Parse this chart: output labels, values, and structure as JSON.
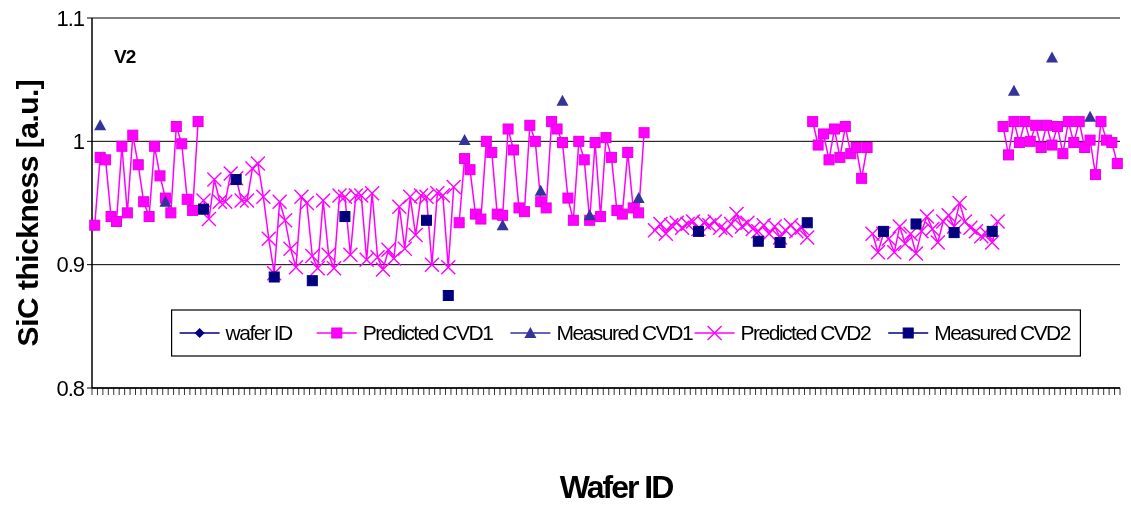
{
  "chart_data": {
    "type": "line",
    "xlabel": "Wafer ID",
    "ylabel": "SiC thickness [a.u.]",
    "annotations": [
      "V2"
    ],
    "categories": [
      null,
      null,
      null,
      null,
      null,
      null,
      null,
      null,
      null,
      null,
      null,
      null,
      null,
      null,
      null,
      null,
      null,
      null,
      null,
      null,
      null,
      null,
      null,
      null,
      null,
      null,
      null,
      null,
      null,
      null,
      null,
      null,
      null,
      null,
      null,
      null,
      null,
      null,
      null,
      null,
      null,
      null,
      null,
      null,
      null,
      null,
      null,
      null,
      null,
      null,
      null,
      null,
      null,
      null,
      null,
      null,
      null,
      null,
      null,
      null,
      null,
      null,
      null,
      null,
      null,
      null,
      null,
      null,
      null,
      null,
      null,
      null,
      null,
      null,
      null,
      null,
      null,
      null,
      null,
      null,
      null,
      null,
      null,
      null,
      null,
      null,
      null,
      null,
      null,
      null,
      null,
      null,
      null,
      null,
      null,
      null,
      null,
      null,
      null,
      null,
      null,
      null,
      null,
      null,
      null,
      null,
      null,
      null,
      null,
      null,
      null,
      null,
      null,
      null,
      null,
      null,
      null,
      null,
      null,
      null,
      null,
      null,
      null,
      null,
      null,
      null,
      null,
      null,
      null,
      null,
      null,
      null,
      null,
      null,
      null,
      null,
      null,
      null,
      null,
      null,
      null,
      null,
      null,
      null,
      null,
      null,
      null,
      null,
      null,
      null,
      null,
      null,
      null,
      null,
      null,
      null,
      null,
      null,
      null,
      null,
      null,
      null,
      null,
      null,
      null,
      null,
      null,
      null,
      null,
      null,
      null,
      null,
      null,
      null,
      null,
      null,
      null,
      null,
      null,
      null,
      null,
      null,
      null,
      null,
      null,
      null,
      null,
      null,
      null
    ],
    "ylim": [
      0.8,
      1.1
    ],
    "yticks": [
      0.8,
      0.9,
      1,
      1.1
    ],
    "grid": "y",
    "legend": "bottom",
    "series": [
      {
        "name": "wafer ID",
        "color": "#000080",
        "marker": "diamond",
        "line_style": "solid",
        "values": [
          null,
          null,
          null,
          null,
          null,
          null,
          null,
          null,
          null,
          null,
          null,
          null,
          null,
          null,
          null,
          null,
          null,
          null,
          null,
          null,
          null,
          null,
          null,
          null,
          null,
          null,
          null,
          null,
          null,
          null,
          null,
          null,
          null,
          null,
          null,
          null,
          null,
          null,
          null,
          null,
          null,
          null,
          null,
          null,
          null,
          null,
          null,
          null,
          null,
          null,
          null,
          null,
          null,
          null,
          null,
          null,
          null,
          null,
          null,
          null,
          null,
          null,
          null,
          null,
          null,
          null,
          null,
          null,
          null,
          null,
          null,
          null,
          null,
          null,
          null,
          null,
          null,
          null,
          null,
          null,
          null,
          null,
          null,
          null,
          null,
          null,
          null,
          null,
          null,
          null,
          null,
          null,
          null,
          null,
          null,
          null,
          null,
          null,
          null,
          null,
          null,
          null,
          null,
          null,
          null,
          null,
          null,
          null,
          null,
          null,
          null,
          null,
          null,
          null,
          null,
          null,
          null,
          null,
          null,
          null,
          null,
          null,
          null,
          null,
          null,
          null,
          null,
          null,
          null,
          null,
          null,
          null,
          null,
          null,
          null,
          null,
          null,
          null,
          null,
          null,
          null,
          null,
          null,
          null,
          null,
          null,
          null,
          null,
          null,
          null,
          null,
          null,
          null,
          null,
          null,
          null,
          null,
          null,
          null,
          null,
          null,
          null,
          null,
          null,
          null,
          null,
          null,
          null,
          null,
          null,
          null,
          null,
          null,
          null,
          null,
          null,
          null,
          null,
          null,
          null,
          null,
          null,
          null,
          null,
          null,
          null,
          null,
          null,
          null
        ]
      },
      {
        "name": "Predicted CVD1",
        "color": "#ff00ff",
        "marker": "square",
        "line_style": "solid",
        "values": [
          0.932,
          0.987,
          0.985,
          0.939,
          0.935,
          0.996,
          0.942,
          1.005,
          0.981,
          0.951,
          0.939,
          0.996,
          0.972,
          0.954,
          0.942,
          1.012,
          0.998,
          0.953,
          0.944,
          1.016,
          null,
          null,
          null,
          null,
          null,
          null,
          null,
          null,
          null,
          null,
          null,
          null,
          null,
          null,
          null,
          null,
          null,
          null,
          null,
          null,
          null,
          null,
          null,
          null,
          null,
          null,
          null,
          null,
          null,
          null,
          null,
          null,
          null,
          null,
          null,
          null,
          null,
          null,
          null,
          null,
          null,
          null,
          null,
          null,
          null,
          null,
          null,
          0.934,
          0.986,
          0.977,
          0.941,
          0.937,
          1.0,
          0.991,
          0.941,
          0.94,
          1.01,
          0.993,
          0.946,
          0.943,
          1.013,
          1.0,
          0.951,
          0.946,
          1.016,
          1.01,
          0.999,
          0.954,
          0.936,
          1.0,
          0.985,
          0.936,
          0.999,
          0.939,
          1.003,
          0.987,
          0.944,
          0.941,
          0.991,
          0.946,
          0.942,
          1.007,
          null,
          null,
          null,
          null,
          null,
          null,
          null,
          null,
          null,
          null,
          null,
          null,
          null,
          null,
          null,
          null,
          null,
          null,
          null,
          null,
          null,
          null,
          null,
          null,
          null,
          null,
          null,
          null,
          null,
          null,
          1.016,
          0.997,
          1.006,
          0.985,
          1.01,
          0.987,
          1.012,
          0.99,
          0.995,
          0.97,
          0.995,
          null,
          null,
          null,
          null,
          null,
          null,
          null,
          null,
          null,
          null,
          null,
          null,
          null,
          null,
          null,
          null,
          null,
          null,
          null,
          null,
          null,
          null,
          null,
          null,
          1.012,
          0.989,
          1.016,
          0.999,
          1.016,
          1.0,
          1.013,
          0.995,
          1.013,
          0.997,
          1.012,
          0.99,
          1.016,
          0.999,
          1.016,
          0.995,
          1.001,
          0.973,
          1.016,
          1.001,
          0.999,
          0.982
        ]
      },
      {
        "name": "Measured CVD1",
        "type": "scatter",
        "color": "#333399",
        "marker": "triangle",
        "values": [
          null,
          1.013,
          null,
          null,
          null,
          null,
          null,
          null,
          null,
          null,
          null,
          null,
          null,
          0.951,
          null,
          null,
          null,
          null,
          null,
          null,
          null,
          null,
          null,
          null,
          null,
          null,
          null,
          null,
          null,
          null,
          null,
          null,
          null,
          null,
          null,
          null,
          null,
          null,
          null,
          null,
          null,
          null,
          null,
          null,
          null,
          null,
          null,
          null,
          null,
          null,
          null,
          null,
          null,
          null,
          null,
          null,
          null,
          null,
          null,
          null,
          null,
          null,
          null,
          null,
          null,
          null,
          null,
          null,
          1.001,
          null,
          null,
          null,
          null,
          null,
          null,
          0.932,
          null,
          null,
          null,
          null,
          null,
          null,
          0.96,
          null,
          null,
          null,
          1.033,
          null,
          null,
          null,
          null,
          0.94,
          null,
          null,
          null,
          null,
          null,
          null,
          null,
          null,
          0.954,
          null,
          null,
          null,
          null,
          null,
          null,
          null,
          null,
          null,
          null,
          null,
          null,
          null,
          null,
          null,
          null,
          null,
          null,
          null,
          null,
          null,
          null,
          null,
          null,
          null,
          null,
          null,
          null,
          null,
          null,
          null,
          null,
          null,
          null,
          null,
          null,
          null,
          null,
          null,
          null,
          null,
          null,
          null,
          null,
          null,
          null,
          null,
          null,
          null,
          null,
          null,
          null,
          null,
          null,
          null,
          null,
          null,
          null,
          null,
          null,
          null,
          null,
          null,
          null,
          null,
          null,
          null,
          null,
          1.041,
          null,
          null,
          null,
          null,
          null,
          null,
          1.068,
          null,
          null,
          null,
          null,
          null,
          null,
          1.02,
          null,
          null,
          null,
          null,
          null
        ]
      },
      {
        "name": "Predicted CVD2",
        "color": "#ff00ff",
        "marker": "cross",
        "line_style": "solid",
        "values": [
          null,
          null,
          null,
          null,
          null,
          null,
          null,
          null,
          null,
          null,
          null,
          null,
          null,
          null,
          null,
          null,
          null,
          null,
          null,
          null,
          0.952,
          0.937,
          0.969,
          0.951,
          0.951,
          0.974,
          0.97,
          0.952,
          0.952,
          0.978,
          0.982,
          0.955,
          0.921,
          0.893,
          0.951,
          0.936,
          0.913,
          0.898,
          0.955,
          0.95,
          0.907,
          0.897,
          0.952,
          0.908,
          0.897,
          0.956,
          0.955,
          0.908,
          0.956,
          0.956,
          0.904,
          0.958,
          0.906,
          0.896,
          0.912,
          0.905,
          0.947,
          0.913,
          0.955,
          0.924,
          0.956,
          0.955,
          0.9,
          0.958,
          0.956,
          0.898,
          0.963,
          null,
          null,
          null,
          null,
          null,
          null,
          null,
          null,
          null,
          null,
          null,
          null,
          null,
          null,
          null,
          null,
          null,
          null,
          null,
          null,
          null,
          null,
          null,
          null,
          null,
          null,
          null,
          null,
          null,
          null,
          null,
          null,
          null,
          null,
          null,
          null,
          0.928,
          0.933,
          0.925,
          0.932,
          0.934,
          0.93,
          0.933,
          0.935,
          0.929,
          0.934,
          0.932,
          0.935,
          0.93,
          0.928,
          0.933,
          0.941,
          0.931,
          0.934,
          0.929,
          0.927,
          0.932,
          0.925,
          0.931,
          0.922,
          0.928,
          0.932,
          0.927,
          0.93,
          0.922,
          null,
          null,
          null,
          null,
          null,
          null,
          null,
          null,
          null,
          null,
          null,
          0.925,
          0.91,
          0.925,
          0.921,
          0.91,
          0.931,
          0.917,
          0.925,
          0.909,
          0.927,
          0.939,
          0.929,
          0.918,
          0.935,
          0.94,
          0.931,
          0.95,
          0.935,
          0.93,
          0.927,
          0.923,
          0.925,
          0.918,
          0.935,
          null,
          null,
          null,
          null,
          null,
          null,
          null,
          null,
          null,
          null,
          null,
          null,
          null,
          null,
          null,
          null,
          null,
          null,
          null,
          null,
          null,
          null
        ]
      },
      {
        "name": "Measured CVD2",
        "type": "scatter",
        "color": "#000080",
        "marker": "square",
        "values": [
          null,
          null,
          null,
          null,
          null,
          null,
          null,
          null,
          null,
          null,
          null,
          null,
          null,
          null,
          null,
          null,
          null,
          null,
          null,
          null,
          0.945,
          null,
          null,
          null,
          null,
          null,
          0.969,
          null,
          null,
          null,
          null,
          null,
          null,
          0.89,
          null,
          null,
          null,
          null,
          null,
          null,
          0.887,
          null,
          null,
          null,
          null,
          null,
          0.939,
          null,
          null,
          null,
          null,
          null,
          null,
          null,
          null,
          null,
          null,
          null,
          null,
          null,
          null,
          0.936,
          null,
          null,
          null,
          0.875,
          null,
          null,
          null,
          null,
          null,
          null,
          null,
          null,
          null,
          null,
          null,
          null,
          null,
          null,
          null,
          null,
          null,
          null,
          null,
          null,
          null,
          null,
          null,
          null,
          null,
          null,
          null,
          null,
          null,
          null,
          null,
          null,
          null,
          null,
          null,
          null,
          null,
          null,
          null,
          null,
          null,
          null,
          null,
          null,
          null,
          0.927,
          null,
          null,
          null,
          null,
          null,
          null,
          null,
          null,
          null,
          null,
          0.919,
          null,
          null,
          null,
          0.918,
          null,
          null,
          null,
          null,
          0.934,
          null,
          null,
          null,
          null,
          null,
          null,
          null,
          null,
          null,
          null,
          null,
          null,
          null,
          0.927,
          null,
          null,
          null,
          null,
          null,
          0.933,
          null,
          null,
          null,
          null,
          null,
          null,
          0.926,
          null,
          null,
          null,
          null,
          null,
          null,
          0.927,
          null,
          null,
          null,
          null,
          null,
          null,
          null,
          null,
          null,
          null,
          null,
          null,
          null,
          null,
          null,
          null,
          null,
          null,
          null,
          null,
          null,
          null,
          null
        ]
      }
    ]
  }
}
